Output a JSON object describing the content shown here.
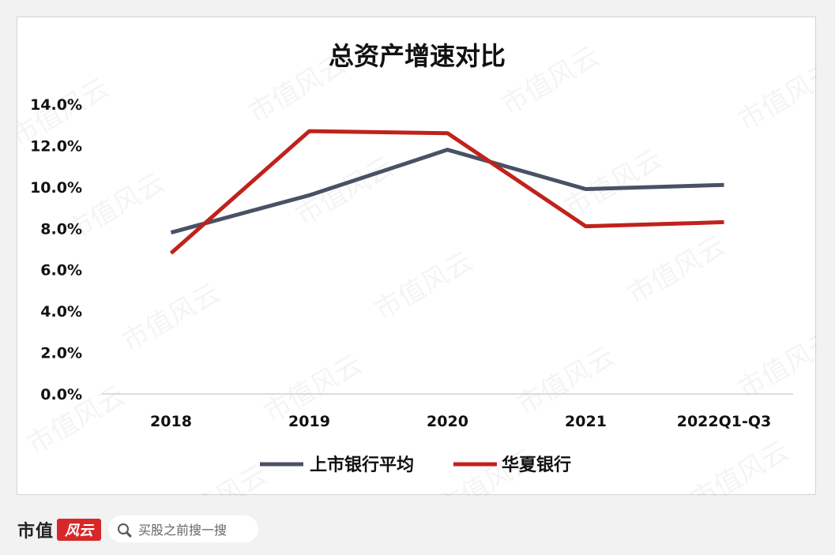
{
  "chart_data": {
    "type": "line",
    "title": "总资产增速对比",
    "categories": [
      "2018",
      "2019",
      "2020",
      "2021",
      "2022Q1-Q3"
    ],
    "yticks": [
      "0.0%",
      "2.0%",
      "4.0%",
      "6.0%",
      "8.0%",
      "10.0%",
      "12.0%",
      "14.0%"
    ],
    "ylim": [
      0,
      14
    ],
    "grid": false,
    "legend_position": "bottom",
    "series": [
      {
        "name": "上市银行平均",
        "color": "#4a5164",
        "values": [
          7.8,
          9.6,
          11.8,
          9.9,
          10.1
        ]
      },
      {
        "name": "华夏银行",
        "color": "#c0221c",
        "values": [
          6.8,
          12.7,
          12.6,
          8.1,
          8.3
        ]
      }
    ]
  },
  "watermark": "市值风云",
  "footer": {
    "brand": "市值",
    "brand_stamp": "风云",
    "search_text": "买股之前搜一搜"
  }
}
